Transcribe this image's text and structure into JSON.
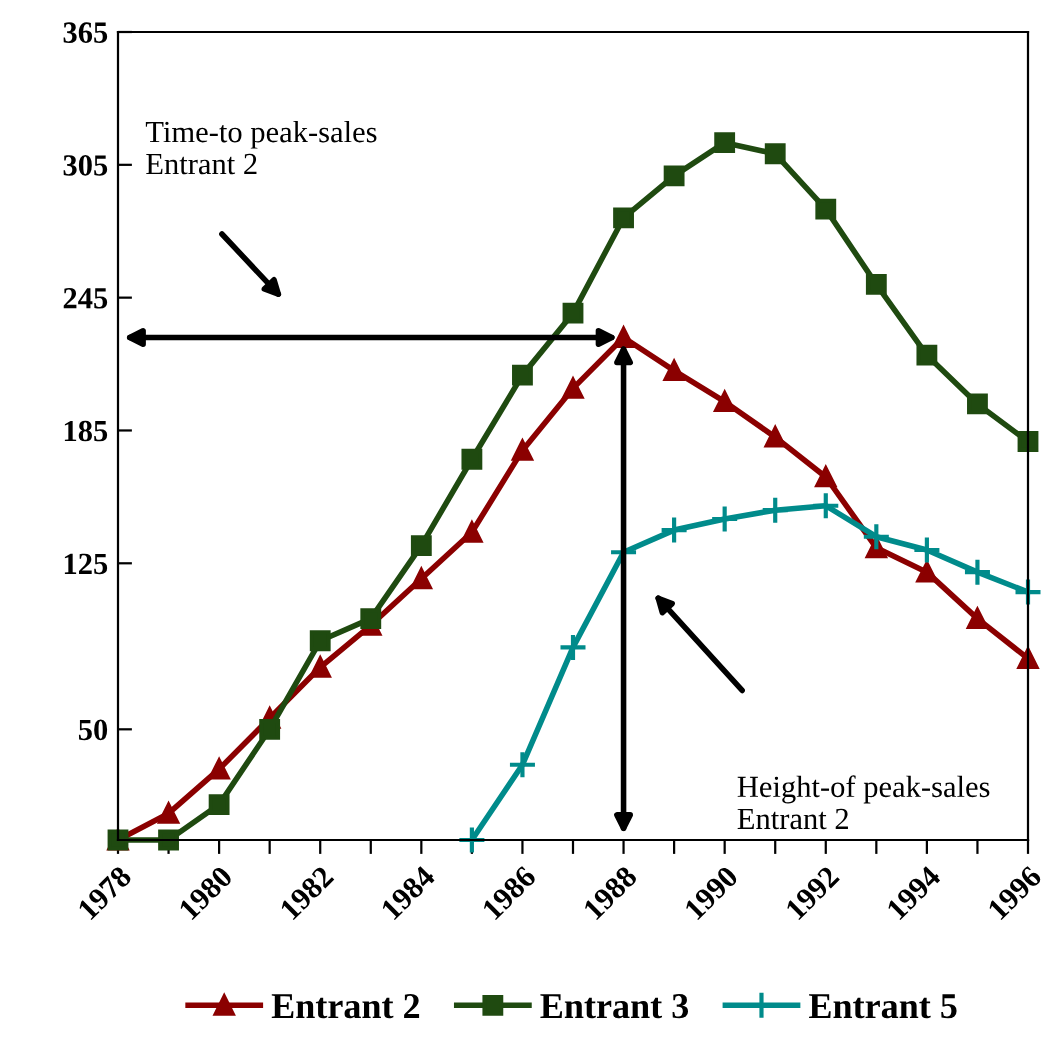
{
  "chart_data": {
    "type": "line",
    "x": [
      1978,
      1979,
      1980,
      1981,
      1982,
      1983,
      1984,
      1985,
      1986,
      1987,
      1988,
      1989,
      1990,
      1991,
      1992,
      1993,
      1994,
      1995,
      1996
    ],
    "series": [
      {
        "name": "Entrant 2",
        "color": "#8b0000",
        "marker": "triangle",
        "values": [
          0,
          12,
          32,
          55,
          78,
          97,
          118,
          139,
          176,
          204,
          227,
          212,
          198,
          182,
          164,
          132,
          121,
          100,
          82
        ]
      },
      {
        "name": "Entrant 3",
        "color": "#1f4a10",
        "marker": "square",
        "values": [
          0,
          0,
          16,
          50,
          90,
          100,
          133,
          172,
          210,
          238,
          281,
          300,
          315,
          310,
          285,
          251,
          219,
          197,
          180
        ]
      },
      {
        "name": "Entrant 5",
        "color": "#008b8b",
        "marker": "cross",
        "values": [
          null,
          null,
          null,
          null,
          null,
          null,
          null,
          0,
          34,
          87,
          130,
          140,
          145,
          149,
          151,
          137,
          131,
          121,
          112
        ]
      }
    ],
    "xlim": [
      1978,
      1996
    ],
    "xticks": [
      1978,
      {
        "value": 1979,
        "label": null
      },
      1980,
      {
        "value": 1981,
        "label": null
      },
      1982,
      {
        "value": 1983,
        "label": null
      },
      1984,
      {
        "value": 1985,
        "label": null
      },
      1986,
      {
        "value": 1987,
        "label": null
      },
      1988,
      {
        "value": 1989,
        "label": null
      },
      1990,
      {
        "value": 1991,
        "label": null
      },
      1992,
      {
        "value": 1993,
        "label": null
      },
      1994,
      {
        "value": 1995,
        "label": null
      },
      1996
    ],
    "ylim": [
      0,
      365
    ],
    "yticks": [
      {
        "value": 0,
        "label": null
      },
      50,
      125,
      185,
      245,
      305,
      365
    ],
    "annotations": [
      "Time-to peak-sales\nEntrant 2",
      "Height-of peak-sales\nEntrant 2"
    ],
    "grid": false,
    "legend": "bottom",
    "line_style": "solid"
  }
}
